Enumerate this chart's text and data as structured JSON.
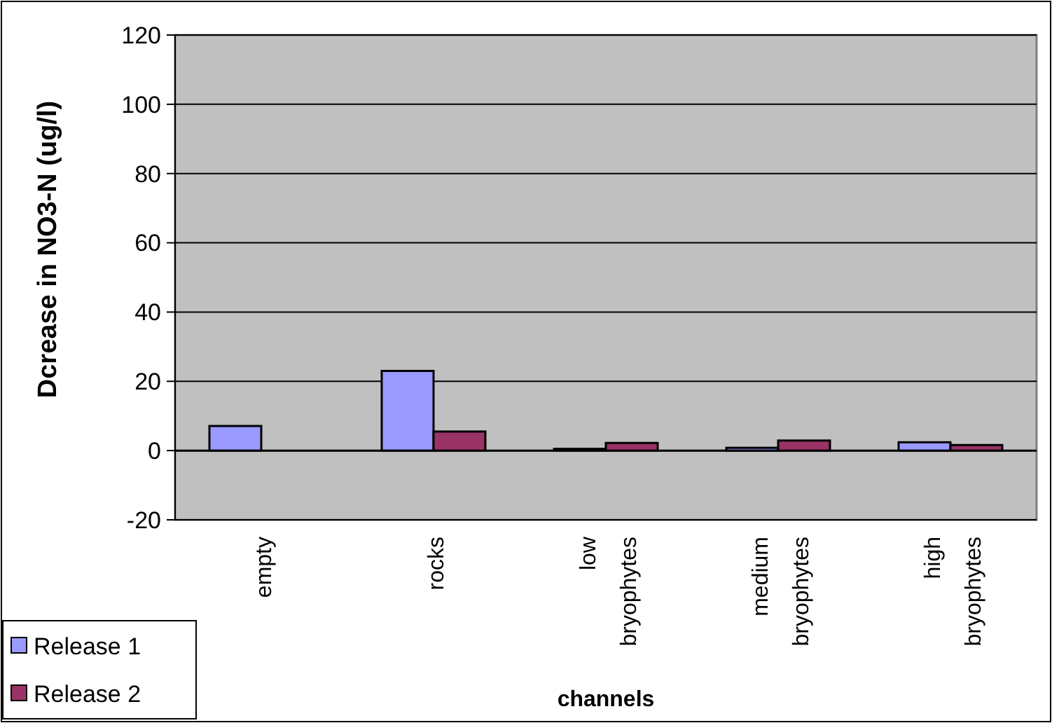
{
  "chart_data": {
    "type": "bar",
    "xlabel": "channels",
    "ylabel": "Dcrease in NO3-N (ug/l)",
    "categories": [
      "empty",
      "rocks",
      "low bryophytes",
      "medium bryophytes",
      "high bryophytes"
    ],
    "series": [
      {
        "name": "Release 1",
        "color": "#9999ff",
        "values": [
          7.1,
          23,
          0.5,
          0.8,
          2.4
        ]
      },
      {
        "name": "Release 2",
        "color": "#993366",
        "values": [
          null,
          5.5,
          2.2,
          2.9,
          1.6
        ]
      }
    ],
    "ylim": [
      -20,
      120
    ],
    "yticks": [
      -20,
      0,
      20,
      40,
      60,
      80,
      100,
      120
    ],
    "grid": "y",
    "legend": "bottom left"
  }
}
